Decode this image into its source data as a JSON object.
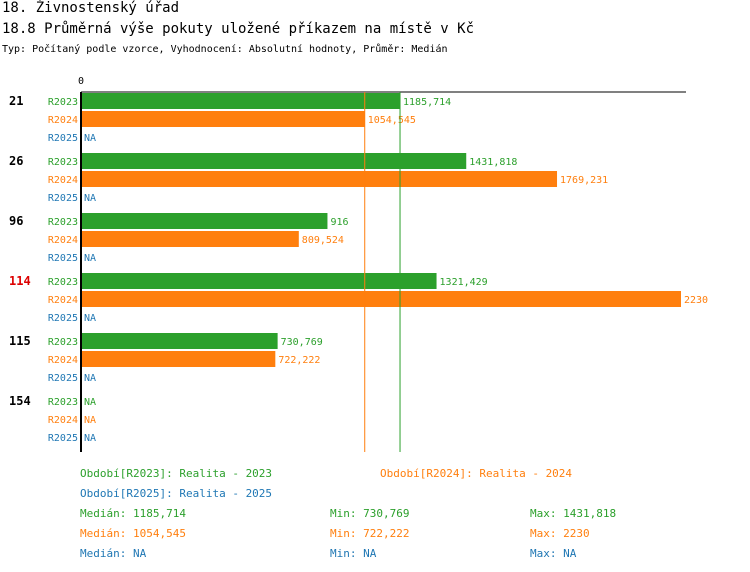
{
  "header": {
    "title": "18. Živnostenský úřad",
    "subtitle": "18.8 Průměrná výše pokuty uložené příkazem na místě v Kč",
    "meta": "Typ: Počítaný podle vzorce, Vyhodnocení: Absolutní hodnoty, Průměr: Medián"
  },
  "colors": {
    "R2023": "#2ca02c",
    "R2024": "#ff7f0e",
    "R2025": "#1f77b4",
    "highlight": "#dd0000"
  },
  "chart_data": {
    "type": "bar",
    "orientation": "horizontal",
    "axis_zero_label": "0",
    "xlim": [
      0,
      2230
    ],
    "series_names": [
      "R2023",
      "R2024",
      "R2025"
    ],
    "groups": [
      {
        "label": "21",
        "highlight": false,
        "values": [
          1185.714,
          1054.545,
          null
        ],
        "labels": [
          "1185,714",
          "1054,545",
          "NA"
        ]
      },
      {
        "label": "26",
        "highlight": false,
        "values": [
          1431.818,
          1769.231,
          null
        ],
        "labels": [
          "1431,818",
          "1769,231",
          "NA"
        ]
      },
      {
        "label": "96",
        "highlight": false,
        "values": [
          916,
          809.524,
          null
        ],
        "labels": [
          "916",
          "809,524",
          "NA"
        ]
      },
      {
        "label": "114",
        "highlight": true,
        "values": [
          1321.429,
          2230,
          null
        ],
        "labels": [
          "1321,429",
          "2230",
          "NA"
        ]
      },
      {
        "label": "115",
        "highlight": false,
        "values": [
          730.769,
          722.222,
          null
        ],
        "labels": [
          "730,769",
          "722,222",
          "NA"
        ]
      },
      {
        "label": "154",
        "highlight": false,
        "values": [
          null,
          null,
          null
        ],
        "labels": [
          "NA",
          "NA",
          "NA"
        ]
      }
    ],
    "median_lines": {
      "R2023": 1185.714,
      "R2024": 1054.545
    }
  },
  "legend": {
    "period_r2023": "Období[R2023]: Realita - 2023",
    "period_r2024": "Období[R2024]: Realita - 2024",
    "period_r2025": "Období[R2025]: Realita - 2025",
    "stats": [
      {
        "median": "Medián: 1185,714",
        "min": "Min: 730,769",
        "max": "Max: 1431,818"
      },
      {
        "median": "Medián: 1054,545",
        "min": "Min: 722,222",
        "max": "Max: 2230"
      },
      {
        "median": "Medián: NA",
        "min": "Min: NA",
        "max": "Max: NA"
      }
    ]
  }
}
